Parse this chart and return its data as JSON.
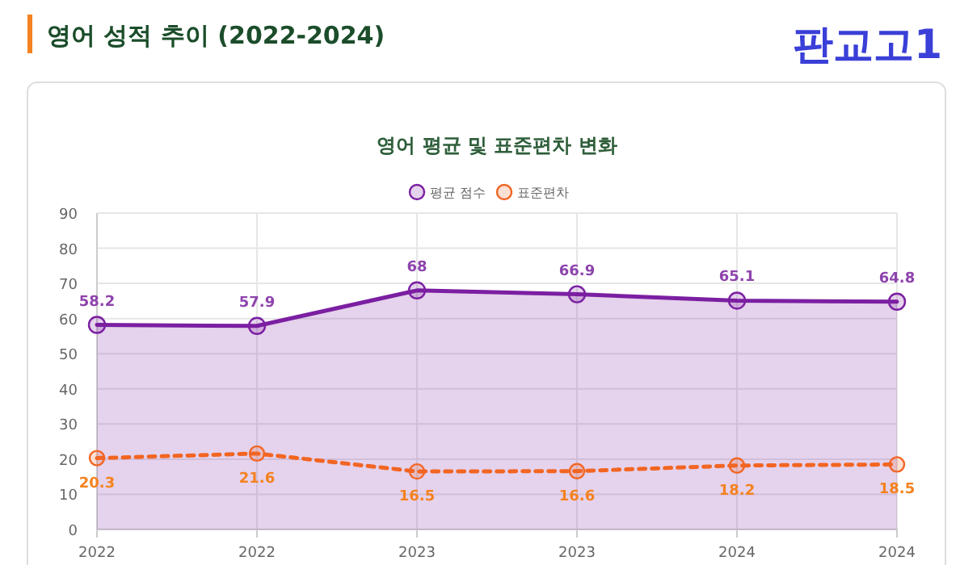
{
  "chart_data": {
    "type": "line",
    "title": "영어 평균 및 표준편차 변화",
    "annotations": [
      "영어 성적 추이 (2022-2024)",
      "판교고1"
    ],
    "categories": [
      "2022",
      "2022",
      "2023",
      "2023",
      "2024",
      "2024"
    ],
    "series": [
      {
        "name": "평균 점수",
        "type": "area",
        "color": "#7b1fa2",
        "values": [
          58.2,
          57.9,
          68,
          66.9,
          65.1,
          64.8
        ],
        "line_style": "solid"
      },
      {
        "name": "표준편차",
        "color": "#f26522",
        "values": [
          20.3,
          21.6,
          16.5,
          16.6,
          18.2,
          18.5
        ],
        "line_style": "dashed"
      }
    ],
    "ylim": [
      0,
      90
    ],
    "yticks": [
      0,
      10,
      20,
      30,
      40,
      50,
      60,
      70,
      80,
      90
    ],
    "grid": true,
    "legend": "top",
    "marker": "circle",
    "data_labels": true
  }
}
